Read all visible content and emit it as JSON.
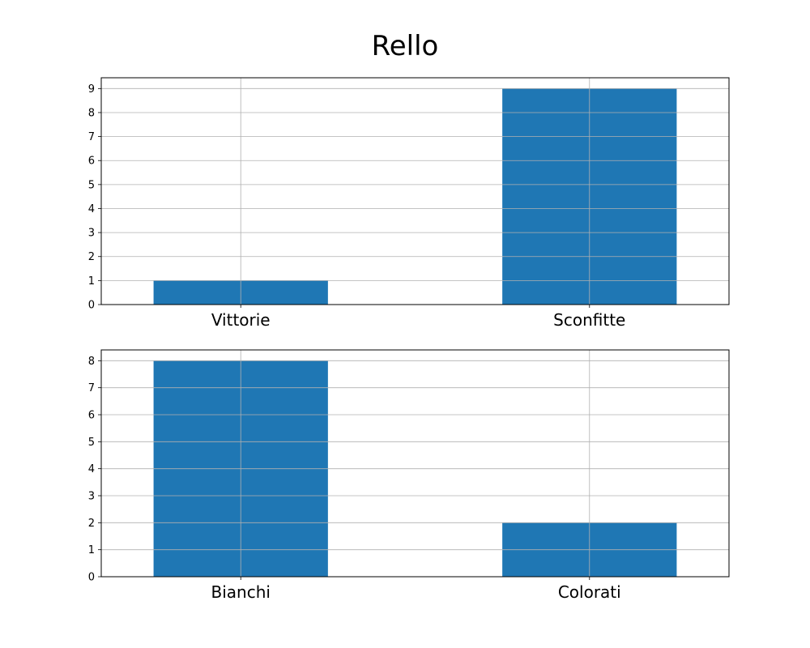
{
  "chart_data": [
    {
      "type": "bar",
      "title": "Rello",
      "categories": [
        "Vittorie",
        "Sconfitte"
      ],
      "values": [
        1,
        9
      ],
      "xlabel": "",
      "ylabel": "",
      "ylim": [
        0,
        9.45
      ],
      "yticks": [
        "0",
        "1",
        "2",
        "3",
        "4",
        "5",
        "6",
        "7",
        "8",
        "9"
      ],
      "grid": true,
      "color": "#1f77b4"
    },
    {
      "type": "bar",
      "categories": [
        "Bianchi",
        "Colorati"
      ],
      "values": [
        8,
        2
      ],
      "xlabel": "",
      "ylabel": "",
      "ylim": [
        0,
        8.4
      ],
      "yticks": [
        "0",
        "1",
        "2",
        "3",
        "4",
        "5",
        "6",
        "7",
        "8"
      ],
      "grid": true,
      "color": "#1f77b4"
    }
  ]
}
